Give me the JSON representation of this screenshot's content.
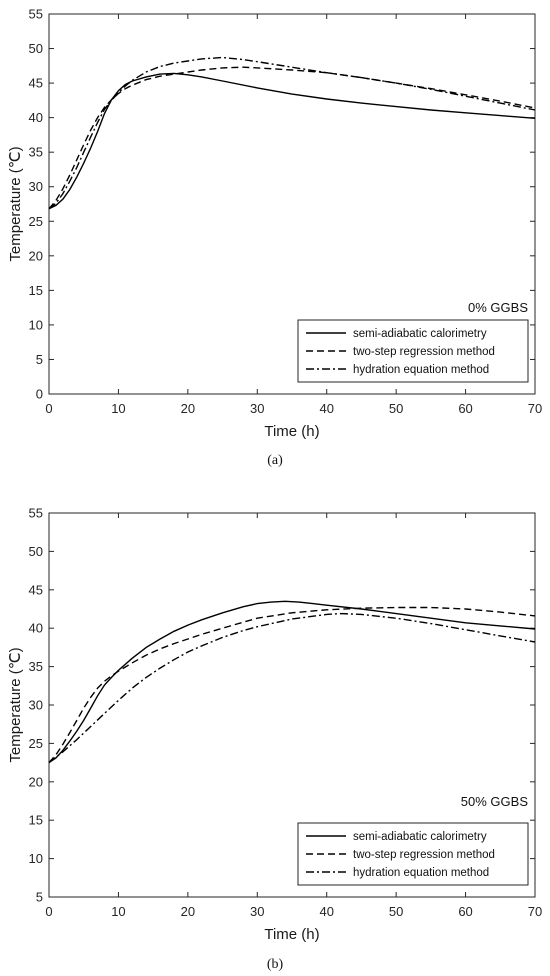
{
  "chart_data": [
    {
      "type": "line",
      "panel": "(a)",
      "annotation": "0% GGBS",
      "xlabel": "Time (h)",
      "ylabel": "Temperature (℃)",
      "xlim": [
        0,
        70
      ],
      "ylim": [
        0,
        55
      ],
      "xticks": [
        0,
        10,
        20,
        30,
        40,
        50,
        60,
        70
      ],
      "yticks": [
        0,
        5,
        10,
        15,
        20,
        25,
        30,
        35,
        40,
        45,
        50,
        55
      ],
      "grid": false,
      "legend_position": "bottom-right",
      "series": [
        {
          "name": "semi-adiabatic calorimetry",
          "style": "solid",
          "x": [
            0,
            1,
            2,
            3,
            4,
            5,
            6,
            7,
            8,
            9,
            10,
            11,
            12,
            14,
            16,
            18,
            20,
            22,
            25,
            30,
            35,
            40,
            45,
            50,
            55,
            60,
            65,
            70
          ],
          "y": [
            26.8,
            27.3,
            28.2,
            29.6,
            31.4,
            33.4,
            35.6,
            38.0,
            40.6,
            42.6,
            43.9,
            44.8,
            45.3,
            45.9,
            46.3,
            46.4,
            46.2,
            45.9,
            45.3,
            44.3,
            43.4,
            42.7,
            42.1,
            41.6,
            41.1,
            40.7,
            40.3,
            39.9
          ]
        },
        {
          "name": "two-step regression method",
          "style": "dashed",
          "x": [
            0,
            1,
            2,
            3,
            4,
            5,
            6,
            7,
            8,
            9,
            10,
            11,
            12,
            14,
            16,
            18,
            20,
            22,
            25,
            28,
            30,
            35,
            40,
            45,
            50,
            55,
            60,
            65,
            70
          ],
          "y": [
            26.8,
            28.0,
            29.7,
            31.7,
            33.9,
            36.1,
            38.2,
            40.0,
            41.5,
            42.6,
            43.5,
            44.2,
            44.7,
            45.5,
            46.0,
            46.3,
            46.6,
            46.9,
            47.2,
            47.3,
            47.2,
            46.9,
            46.5,
            45.8,
            45.0,
            44.2,
            43.3,
            42.4,
            41.4
          ]
        },
        {
          "name": "hydration equation method",
          "style": "dash-dot",
          "x": [
            0,
            1,
            2,
            3,
            4,
            5,
            6,
            7,
            8,
            9,
            10,
            11,
            12,
            14,
            16,
            18,
            20,
            22,
            25,
            28,
            30,
            35,
            40,
            45,
            50,
            55,
            60,
            65,
            70
          ],
          "y": [
            26.8,
            27.6,
            29.0,
            30.8,
            32.8,
            35.0,
            37.2,
            39.3,
            41.2,
            42.5,
            43.6,
            44.6,
            45.4,
            46.6,
            47.4,
            47.9,
            48.2,
            48.5,
            48.7,
            48.4,
            48.1,
            47.3,
            46.5,
            45.8,
            45.0,
            44.1,
            43.1,
            42.1,
            41.1
          ]
        }
      ]
    },
    {
      "type": "line",
      "panel": "(b)",
      "annotation": "50% GGBS",
      "xlabel": "Time (h)",
      "ylabel": "Temperature (℃)",
      "xlim": [
        0,
        70
      ],
      "ylim": [
        5,
        55
      ],
      "xticks": [
        0,
        10,
        20,
        30,
        40,
        50,
        60,
        70
      ],
      "yticks": [
        5,
        10,
        15,
        20,
        25,
        30,
        35,
        40,
        45,
        50,
        55
      ],
      "grid": false,
      "legend_position": "bottom-right",
      "series": [
        {
          "name": "semi-adiabatic calorimetry",
          "style": "solid",
          "x": [
            0,
            1,
            2,
            3,
            4,
            5,
            6,
            7,
            8,
            9,
            10,
            12,
            14,
            16,
            18,
            20,
            22,
            25,
            28,
            30,
            32,
            34,
            36,
            38,
            40,
            45,
            50,
            55,
            60,
            65,
            70
          ],
          "y": [
            22.5,
            23.1,
            24.1,
            25.3,
            26.6,
            28.0,
            29.6,
            31.2,
            32.6,
            33.6,
            34.5,
            36.1,
            37.5,
            38.6,
            39.6,
            40.4,
            41.1,
            42.0,
            42.8,
            43.2,
            43.4,
            43.5,
            43.4,
            43.2,
            43.0,
            42.5,
            41.9,
            41.3,
            40.7,
            40.3,
            39.9
          ]
        },
        {
          "name": "two-step regression method",
          "style": "dashed",
          "x": [
            0,
            1,
            2,
            3,
            4,
            5,
            6,
            7,
            8,
            9,
            10,
            12,
            14,
            16,
            18,
            20,
            22,
            25,
            28,
            30,
            35,
            40,
            45,
            50,
            55,
            60,
            65,
            70
          ],
          "y": [
            22.5,
            23.5,
            24.9,
            26.4,
            28.0,
            29.6,
            31.0,
            32.2,
            33.1,
            33.8,
            34.4,
            35.5,
            36.5,
            37.3,
            38.0,
            38.6,
            39.2,
            40.0,
            40.8,
            41.3,
            42.0,
            42.4,
            42.6,
            42.7,
            42.7,
            42.5,
            42.1,
            41.6
          ]
        },
        {
          "name": "hydration equation method",
          "style": "dash-dot",
          "x": [
            0,
            2,
            4,
            6,
            8,
            10,
            12,
            14,
            16,
            18,
            20,
            22,
            25,
            28,
            30,
            35,
            40,
            42,
            45,
            50,
            55,
            60,
            65,
            70
          ],
          "y": [
            22.5,
            23.9,
            25.5,
            27.2,
            28.9,
            30.6,
            32.2,
            33.6,
            34.8,
            35.9,
            36.9,
            37.7,
            38.8,
            39.7,
            40.2,
            41.2,
            41.8,
            41.9,
            41.8,
            41.3,
            40.6,
            39.8,
            39.0,
            38.2
          ]
        }
      ]
    }
  ]
}
